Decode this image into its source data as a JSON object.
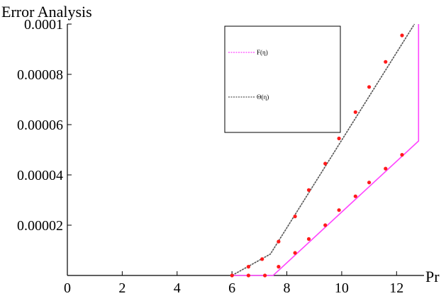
{
  "chart_data": {
    "type": "line",
    "title": "",
    "ylabel": "Error Analysis",
    "xlabel": "Pr",
    "xlim": [
      0,
      13
    ],
    "ylim": [
      0,
      0.0001
    ],
    "x_ticks": [
      0,
      2,
      4,
      6,
      8,
      10,
      12
    ],
    "y_ticks": [
      2e-05,
      4e-05,
      6e-05,
      8e-05,
      0.0001
    ],
    "y_tick_labels": [
      "0.00002",
      "0.00004",
      "0.00006",
      "0.00008",
      "0.0001"
    ],
    "grid": false,
    "legend": "top-right",
    "series": [
      {
        "name": "F(η)",
        "color": "#ff44ff",
        "style": "solid",
        "line": [
          [
            6.0,
            0
          ],
          [
            7.5,
            0
          ],
          [
            12.8,
            5.35e-05
          ],
          [
            12.8,
            0.0001
          ]
        ],
        "markers": [
          [
            6.6,
            0
          ],
          [
            7.2,
            0
          ],
          [
            7.7,
            3.5e-06
          ],
          [
            8.3,
            9e-06
          ],
          [
            8.8,
            1.45e-05
          ],
          [
            9.4,
            2e-05
          ],
          [
            9.9,
            2.6e-05
          ],
          [
            10.5,
            3.15e-05
          ],
          [
            11.0,
            3.7e-05
          ],
          [
            11.6,
            4.25e-05
          ],
          [
            12.2,
            4.8e-05
          ]
        ]
      },
      {
        "name": "Θ(η)",
        "color": "#555555",
        "style": "dashed",
        "line": [
          [
            6.0,
            0
          ],
          [
            7.4,
            8.5e-06
          ],
          [
            12.65,
            0.0001
          ]
        ],
        "markers": [
          [
            6.0,
            0
          ],
          [
            6.6,
            3.5e-06
          ],
          [
            7.1,
            6.5e-06
          ],
          [
            7.7,
            1.35e-05
          ],
          [
            8.3,
            2.35e-05
          ],
          [
            8.8,
            3.4e-05
          ],
          [
            9.4,
            4.45e-05
          ],
          [
            9.9,
            5.45e-05
          ],
          [
            10.5,
            6.5e-05
          ],
          [
            11.0,
            7.5e-05
          ],
          [
            11.6,
            8.5e-05
          ],
          [
            12.2,
            9.55e-05
          ]
        ]
      }
    ],
    "marker_color": "#ff1a1a"
  }
}
